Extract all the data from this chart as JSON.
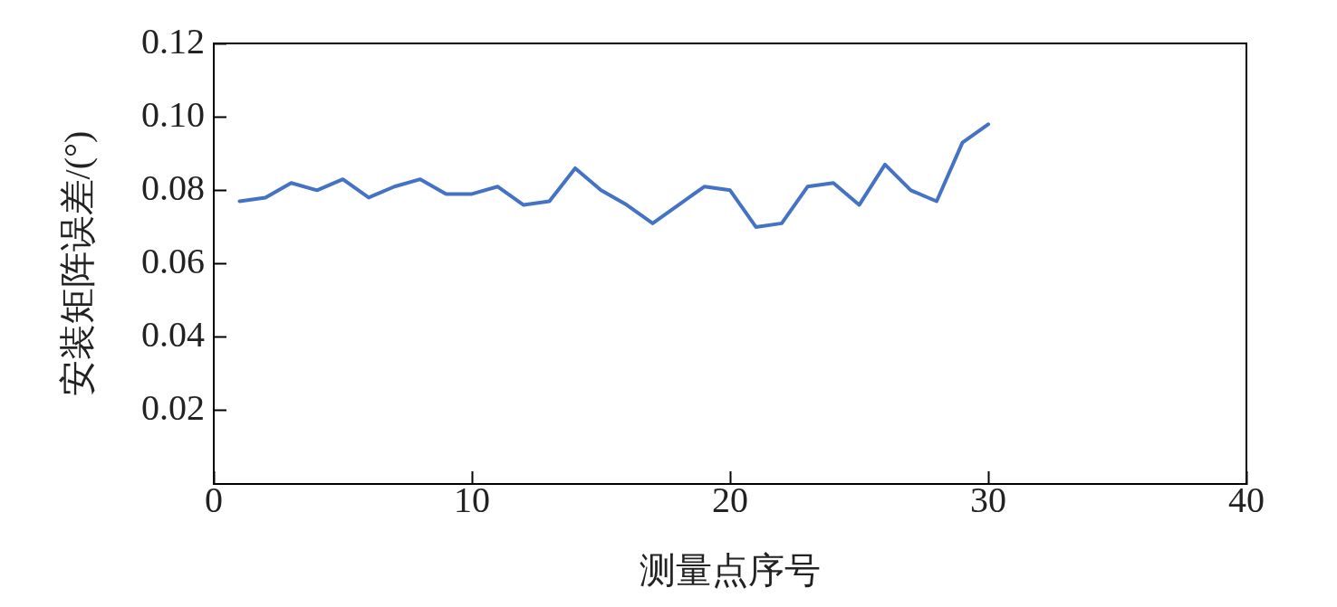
{
  "chart_data": {
    "type": "line",
    "xlabel": "测量点序号",
    "ylabel": "安装矩阵误差/(°)",
    "x": [
      1,
      2,
      3,
      4,
      5,
      6,
      7,
      8,
      9,
      10,
      11,
      12,
      13,
      14,
      15,
      16,
      17,
      18,
      19,
      20,
      21,
      22,
      23,
      24,
      25,
      26,
      27,
      28,
      29,
      30
    ],
    "series": [
      {
        "color": "#4472c4",
        "values": [
          0.077,
          0.078,
          0.082,
          0.08,
          0.083,
          0.078,
          0.081,
          0.083,
          0.079,
          0.079,
          0.081,
          0.076,
          0.077,
          0.086,
          0.08,
          0.076,
          0.071,
          0.076,
          0.081,
          0.08,
          0.07,
          0.071,
          0.081,
          0.082,
          0.076,
          0.087,
          0.08,
          0.077,
          0.093,
          0.098
        ]
      }
    ],
    "xlim": [
      0,
      40
    ],
    "xticks": [
      0,
      10,
      20,
      30,
      40
    ],
    "ylim": [
      0,
      0.12
    ],
    "yticks": [
      {
        "value": 0.02,
        "label": "0.02"
      },
      {
        "value": 0.04,
        "label": "0.04"
      },
      {
        "value": 0.06,
        "label": "0.06"
      },
      {
        "value": 0.08,
        "label": "0.08"
      },
      {
        "value": 0.1,
        "label": "0.10"
      },
      {
        "value": 0.12,
        "label": "0.12"
      }
    ],
    "grid": false,
    "legend": false,
    "marker": "none",
    "line_style": "solid"
  }
}
